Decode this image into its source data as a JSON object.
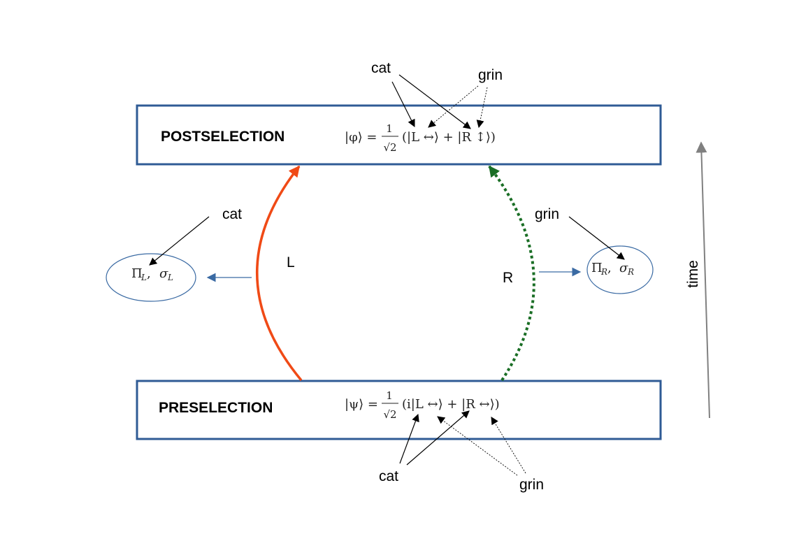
{
  "postselection": {
    "title": "POSTSELECTION",
    "state": {
      "lhs": "|φ⟩ =",
      "frac_num": "1",
      "frac_den": "√2",
      "rhs": "(|L ↔⟩ + |R ↕⟩)"
    },
    "annotations": {
      "cat": "cat",
      "grin": "grin"
    }
  },
  "preselection": {
    "title": "PRESELECTION",
    "state": {
      "lhs": "|ψ⟩ =",
      "frac_num": "1",
      "frac_den": "√2",
      "rhs": "(i|L ↔⟩ + |R ↔⟩)"
    },
    "annotations": {
      "cat": "cat",
      "grin": "grin"
    }
  },
  "left_path": {
    "label": "L",
    "color": "#f04a16",
    "measurement": "Π",
    "measurement_sub": "L",
    "sigma": "σ",
    "sigma_sub": "L",
    "annotation": "cat"
  },
  "right_path": {
    "label": "R",
    "color": "#1a6e25",
    "measurement": "Π",
    "measurement_sub": "R",
    "sigma": "σ",
    "sigma_sub": "R",
    "annotation": "grin"
  },
  "time_axis": {
    "label": "time",
    "color": "#808080"
  },
  "colors": {
    "box_border": "#2f5b95",
    "ellipse_border": "#3a6aa3",
    "arrow_blue": "#3a6aa3"
  }
}
